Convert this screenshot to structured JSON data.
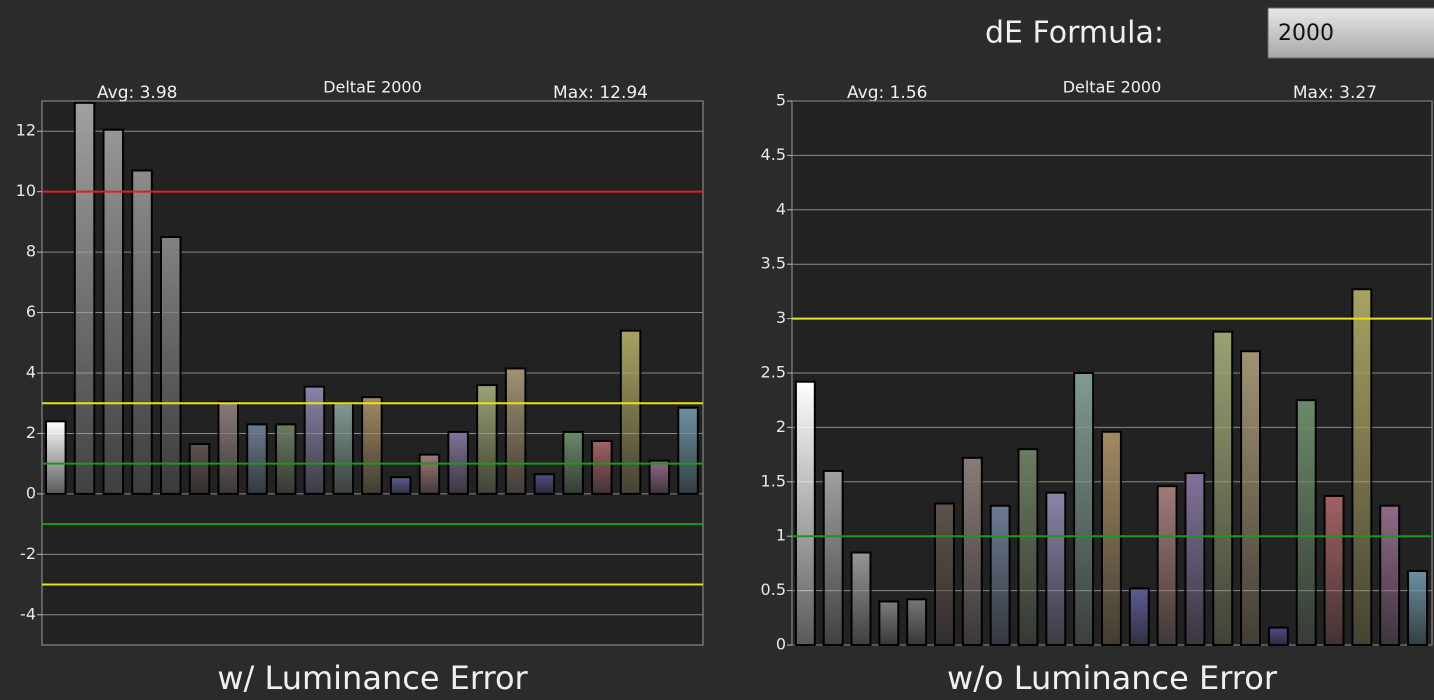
{
  "header": {
    "label": "dE Formula:",
    "dropdown_value": "2000"
  },
  "chart_data": [
    {
      "type": "bar",
      "title": "DeltaE 2000",
      "avg_label": "Avg: 3.98",
      "max_label": "Max: 12.94",
      "caption": "w/ Luminance Error",
      "values": [
        2.4,
        12.94,
        12.05,
        10.7,
        8.5,
        1.65,
        3.05,
        2.3,
        2.3,
        3.55,
        3.0,
        3.2,
        0.55,
        1.3,
        2.05,
        3.6,
        4.15,
        0.65,
        2.05,
        1.75,
        5.4,
        1.1,
        2.85
      ],
      "colors": [
        "#ffffff",
        "#a0a0a0",
        "#969696",
        "#8c8c8c",
        "#828282",
        "#5e524c",
        "#8a7c78",
        "#6c7a92",
        "#6c7c62",
        "#8a84a8",
        "#809a92",
        "#a28a62",
        "#5c5c94",
        "#a27a7a",
        "#82729a",
        "#9aa272",
        "#a29272",
        "#4c4c84",
        "#6c8a6a",
        "#a26262",
        "#aaa262",
        "#926a8a",
        "#6a92a2"
      ],
      "ylim": [
        -5,
        13
      ],
      "yticks": [
        -4,
        -2,
        0,
        2,
        4,
        6,
        8,
        10,
        12
      ],
      "grid": true,
      "reference_lines": [
        {
          "value": 10,
          "color": "#e02020"
        },
        {
          "value": 3,
          "color": "#e8e020"
        },
        {
          "value": -3,
          "color": "#e8e020"
        },
        {
          "value": 1,
          "color": "#1a9a1a"
        },
        {
          "value": -1,
          "color": "#1a9a1a"
        }
      ]
    },
    {
      "type": "bar",
      "title": "DeltaE 2000",
      "avg_label": "Avg: 1.56",
      "max_label": "Max: 3.27",
      "caption": "w/o Luminance Error",
      "values": [
        2.42,
        1.6,
        0.85,
        0.4,
        0.42,
        1.3,
        1.72,
        1.28,
        1.8,
        1.4,
        2.5,
        1.96,
        0.52,
        1.46,
        1.58,
        2.88,
        2.7,
        0.16,
        2.25,
        1.37,
        3.27,
        1.28,
        0.68
      ],
      "colors": [
        "#ffffff",
        "#a0a0a0",
        "#969696",
        "#7c7c7c",
        "#767676",
        "#5e524c",
        "#8a7c78",
        "#6c7a92",
        "#6c7c62",
        "#8a84a8",
        "#809a92",
        "#a28a62",
        "#5c5c94",
        "#a27a7a",
        "#82729a",
        "#9aa272",
        "#a29272",
        "#4c4c84",
        "#6c8a6a",
        "#a26262",
        "#aaa262",
        "#926a8a",
        "#6a92a2"
      ],
      "ylim": [
        0,
        5
      ],
      "yticks": [
        0,
        0.5,
        1,
        1.5,
        2,
        2.5,
        3,
        3.5,
        4,
        4.5,
        5
      ],
      "grid": true,
      "reference_lines": [
        {
          "value": 3,
          "color": "#e8e020"
        },
        {
          "value": 1,
          "color": "#1a9a1a"
        }
      ]
    }
  ]
}
